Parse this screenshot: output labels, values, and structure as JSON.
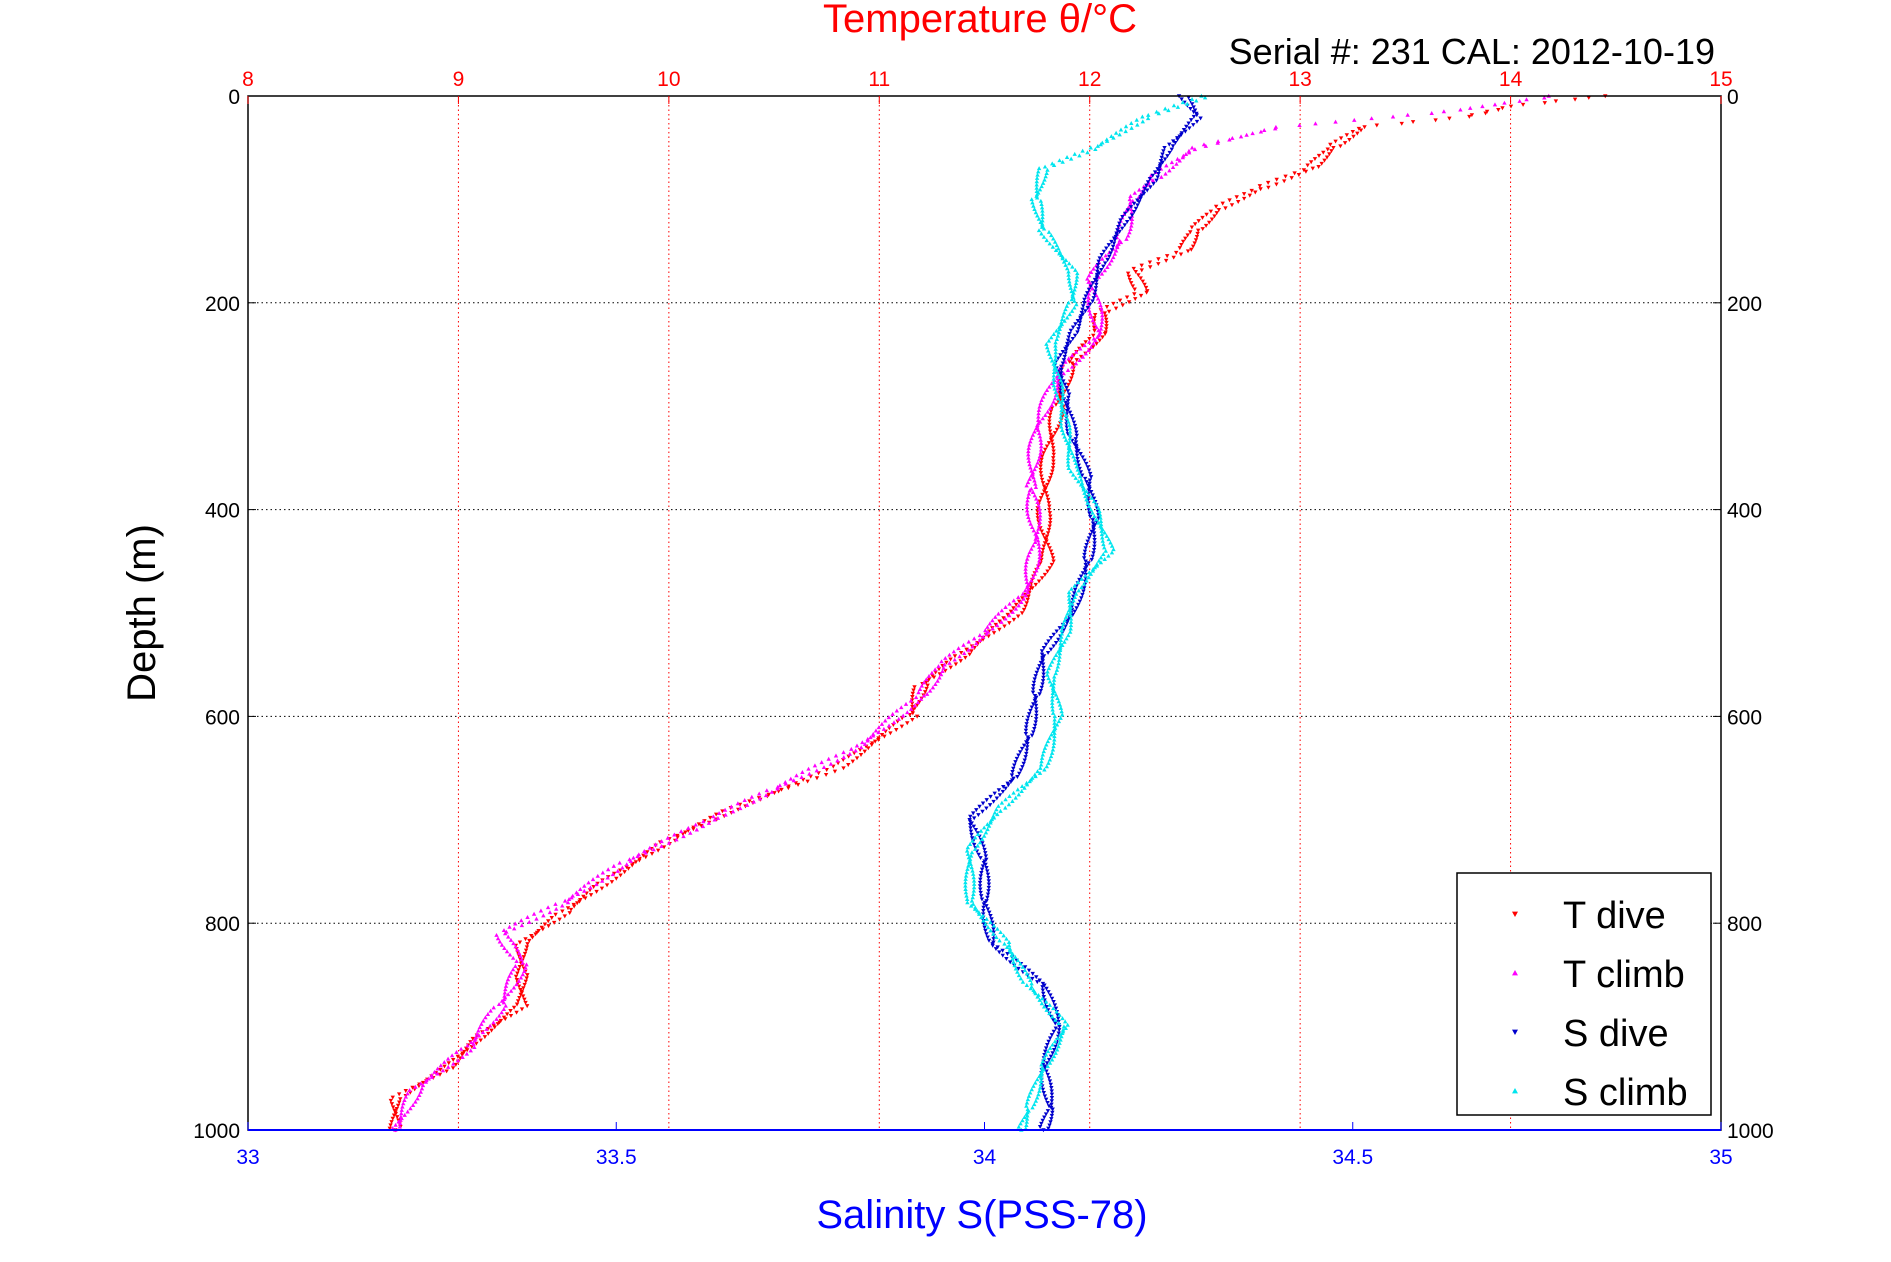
{
  "chart_data": {
    "type": "scatter",
    "title": "Temperature θ/°C",
    "annotation": "Serial #: 231   CAL: 2012-10-19",
    "xlabel_bottom": "Salinity S(PSS-78)",
    "xlabel_top": "Temperature θ/°C",
    "ylabel": "Depth (m)",
    "x_bottom": {
      "range": [
        33,
        35
      ],
      "ticks": [
        "33",
        "33.5",
        "34",
        "34.5",
        "35"
      ],
      "color": "#0000ff"
    },
    "x_top": {
      "range": [
        8,
        15
      ],
      "ticks": [
        "8",
        "9",
        "10",
        "11",
        "12",
        "13",
        "14",
        "15"
      ],
      "color": "#ff0000"
    },
    "y": {
      "range": [
        0,
        1000
      ],
      "reversed": true,
      "ticks": [
        "0",
        "200",
        "400",
        "600",
        "800",
        "1000"
      ]
    },
    "grid": true,
    "legend_position": "bottom-right",
    "series": [
      {
        "name": "T dive",
        "axis": "temperature",
        "color": "#ff0000",
        "marker": "triangle-down",
        "points": [
          [
            14.45,
            0
          ],
          [
            14.0,
            10
          ],
          [
            13.8,
            20
          ],
          [
            13.3,
            30
          ],
          [
            13.15,
            50
          ],
          [
            13.05,
            70
          ],
          [
            12.8,
            90
          ],
          [
            12.6,
            110
          ],
          [
            12.5,
            130
          ],
          [
            12.45,
            150
          ],
          [
            12.2,
            170
          ],
          [
            12.25,
            190
          ],
          [
            12.05,
            210
          ],
          [
            12.05,
            230
          ],
          [
            11.9,
            260
          ],
          [
            11.85,
            300
          ],
          [
            11.8,
            350
          ],
          [
            11.78,
            400
          ],
          [
            11.8,
            450
          ],
          [
            11.65,
            500
          ],
          [
            11.4,
            540
          ],
          [
            11.2,
            570
          ],
          [
            11.15,
            600
          ],
          [
            10.8,
            650
          ],
          [
            10.3,
            690
          ],
          [
            10.0,
            720
          ],
          [
            9.7,
            760
          ],
          [
            9.5,
            790
          ],
          [
            9.3,
            820
          ],
          [
            9.3,
            850
          ],
          [
            9.3,
            880
          ],
          [
            9.1,
            910
          ],
          [
            8.95,
            940
          ],
          [
            8.7,
            970
          ],
          [
            8.7,
            1000
          ]
        ]
      },
      {
        "name": "T climb",
        "axis": "temperature",
        "color": "#ff00ff",
        "marker": "triangle-up",
        "points": [
          [
            14.2,
            0
          ],
          [
            13.7,
            15
          ],
          [
            12.9,
            30
          ],
          [
            12.5,
            50
          ],
          [
            12.3,
            80
          ],
          [
            12.2,
            100
          ],
          [
            12.15,
            140
          ],
          [
            12.0,
            180
          ],
          [
            12.05,
            230
          ],
          [
            11.85,
            270
          ],
          [
            11.75,
            320
          ],
          [
            11.72,
            380
          ],
          [
            11.75,
            430
          ],
          [
            11.7,
            480
          ],
          [
            11.5,
            520
          ],
          [
            11.3,
            550
          ],
          [
            11.2,
            580
          ],
          [
            10.9,
            630
          ],
          [
            10.5,
            670
          ],
          [
            10.2,
            700
          ],
          [
            9.8,
            740
          ],
          [
            9.5,
            780
          ],
          [
            9.2,
            810
          ],
          [
            9.3,
            840
          ],
          [
            9.2,
            880
          ],
          [
            9.05,
            920
          ],
          [
            8.8,
            960
          ],
          [
            8.7,
            1000
          ]
        ]
      },
      {
        "name": "S dive",
        "axis": "salinity",
        "color": "#0000cc",
        "marker": "triangle-down",
        "points": [
          [
            34.27,
            0
          ],
          [
            34.29,
            20
          ],
          [
            34.25,
            50
          ],
          [
            34.23,
            80
          ],
          [
            34.19,
            120
          ],
          [
            34.16,
            160
          ],
          [
            34.14,
            200
          ],
          [
            34.12,
            230
          ],
          [
            34.1,
            260
          ],
          [
            34.11,
            290
          ],
          [
            34.12,
            330
          ],
          [
            34.14,
            370
          ],
          [
            34.15,
            410
          ],
          [
            34.14,
            450
          ],
          [
            34.12,
            500
          ],
          [
            34.08,
            540
          ],
          [
            34.07,
            580
          ],
          [
            34.06,
            620
          ],
          [
            34.04,
            660
          ],
          [
            33.98,
            700
          ],
          [
            34.0,
            740
          ],
          [
            34.0,
            780
          ],
          [
            34.01,
            820
          ],
          [
            34.08,
            860
          ],
          [
            34.1,
            900
          ],
          [
            34.08,
            940
          ],
          [
            34.09,
            980
          ],
          [
            34.08,
            1000
          ]
        ]
      },
      {
        "name": "S climb",
        "axis": "salinity",
        "color": "#00e5ee",
        "marker": "triangle-up",
        "points": [
          [
            34.3,
            0
          ],
          [
            34.22,
            20
          ],
          [
            34.15,
            50
          ],
          [
            34.08,
            70
          ],
          [
            34.07,
            100
          ],
          [
            34.08,
            130
          ],
          [
            34.12,
            170
          ],
          [
            34.12,
            200
          ],
          [
            34.09,
            240
          ],
          [
            34.1,
            280
          ],
          [
            34.11,
            320
          ],
          [
            34.12,
            360
          ],
          [
            34.15,
            400
          ],
          [
            34.17,
            440
          ],
          [
            34.12,
            480
          ],
          [
            34.11,
            520
          ],
          [
            34.09,
            560
          ],
          [
            34.1,
            600
          ],
          [
            34.08,
            650
          ],
          [
            34.02,
            690
          ],
          [
            33.98,
            730
          ],
          [
            33.98,
            780
          ],
          [
            34.03,
            820
          ],
          [
            34.06,
            860
          ],
          [
            34.11,
            900
          ],
          [
            34.08,
            940
          ],
          [
            34.06,
            980
          ],
          [
            34.05,
            1000
          ]
        ]
      }
    ]
  }
}
